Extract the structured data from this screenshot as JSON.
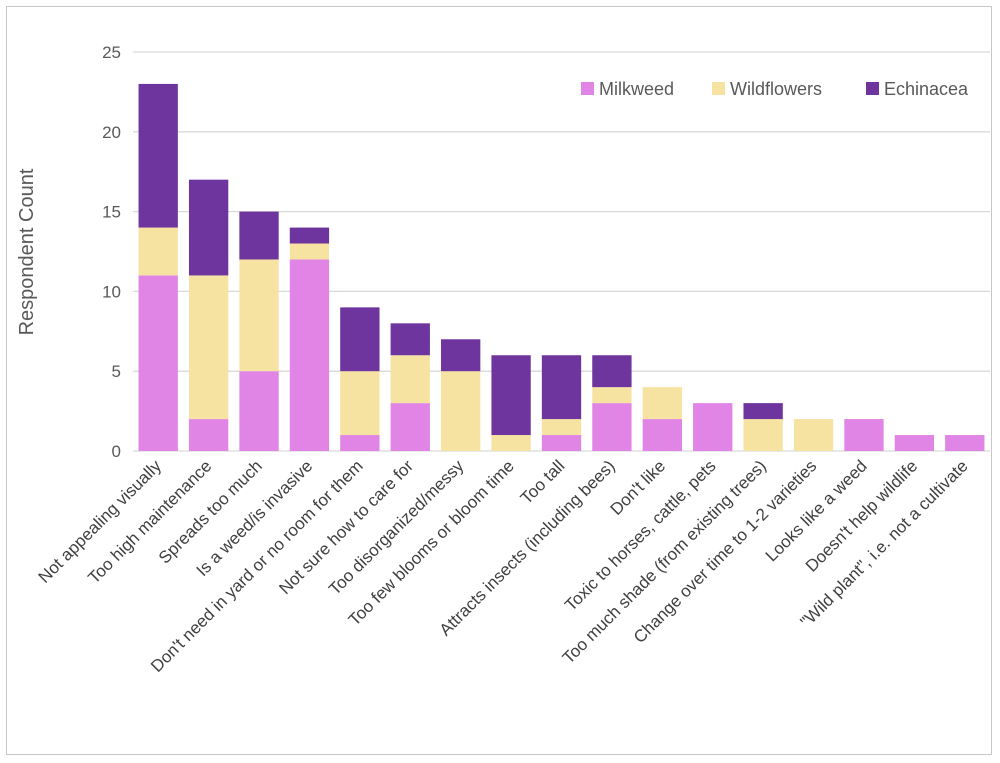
{
  "chart_data": {
    "type": "bar",
    "stacked": true,
    "title": "",
    "xlabel": "",
    "ylabel": "Respondent Count",
    "ylim": [
      0,
      25
    ],
    "yticks": [
      0,
      5,
      10,
      15,
      20,
      25
    ],
    "grid": "horizontal",
    "legend_position": "top-right",
    "categories": [
      "Not appealing visually",
      "Too high maintenance",
      "Spreads too much",
      "Is a weed/is invasive",
      "Don't need in yard or no room for them",
      "Not sure how to care for",
      "Too disorganized/messy",
      "Too few blooms or bloom time",
      "Too tall",
      "Attracts insects (including bees)",
      "Don't like",
      "Toxic to horses, cattle, pets",
      "Too much shade (from existing trees)",
      "Change over time to 1-2 varieties",
      "Looks like a weed",
      "Doesn't help wildlife",
      "\"Wild plant\", i.e. not a cultivate"
    ],
    "series": [
      {
        "name": "Milkweed",
        "color": "#e085e6",
        "values": [
          11,
          2,
          5,
          12,
          1,
          3,
          0,
          0,
          1,
          3,
          2,
          3,
          0,
          0,
          2,
          1,
          1
        ]
      },
      {
        "name": "Wildflowers",
        "color": "#f7e3a1",
        "values": [
          3,
          9,
          7,
          1,
          4,
          3,
          5,
          1,
          1,
          1,
          2,
          0,
          2,
          2,
          0,
          0,
          0
        ]
      },
      {
        "name": "Echinacea",
        "color": "#6f359f",
        "values": [
          9,
          6,
          3,
          1,
          4,
          2,
          2,
          5,
          4,
          2,
          0,
          0,
          1,
          0,
          0,
          0,
          0
        ]
      }
    ]
  }
}
